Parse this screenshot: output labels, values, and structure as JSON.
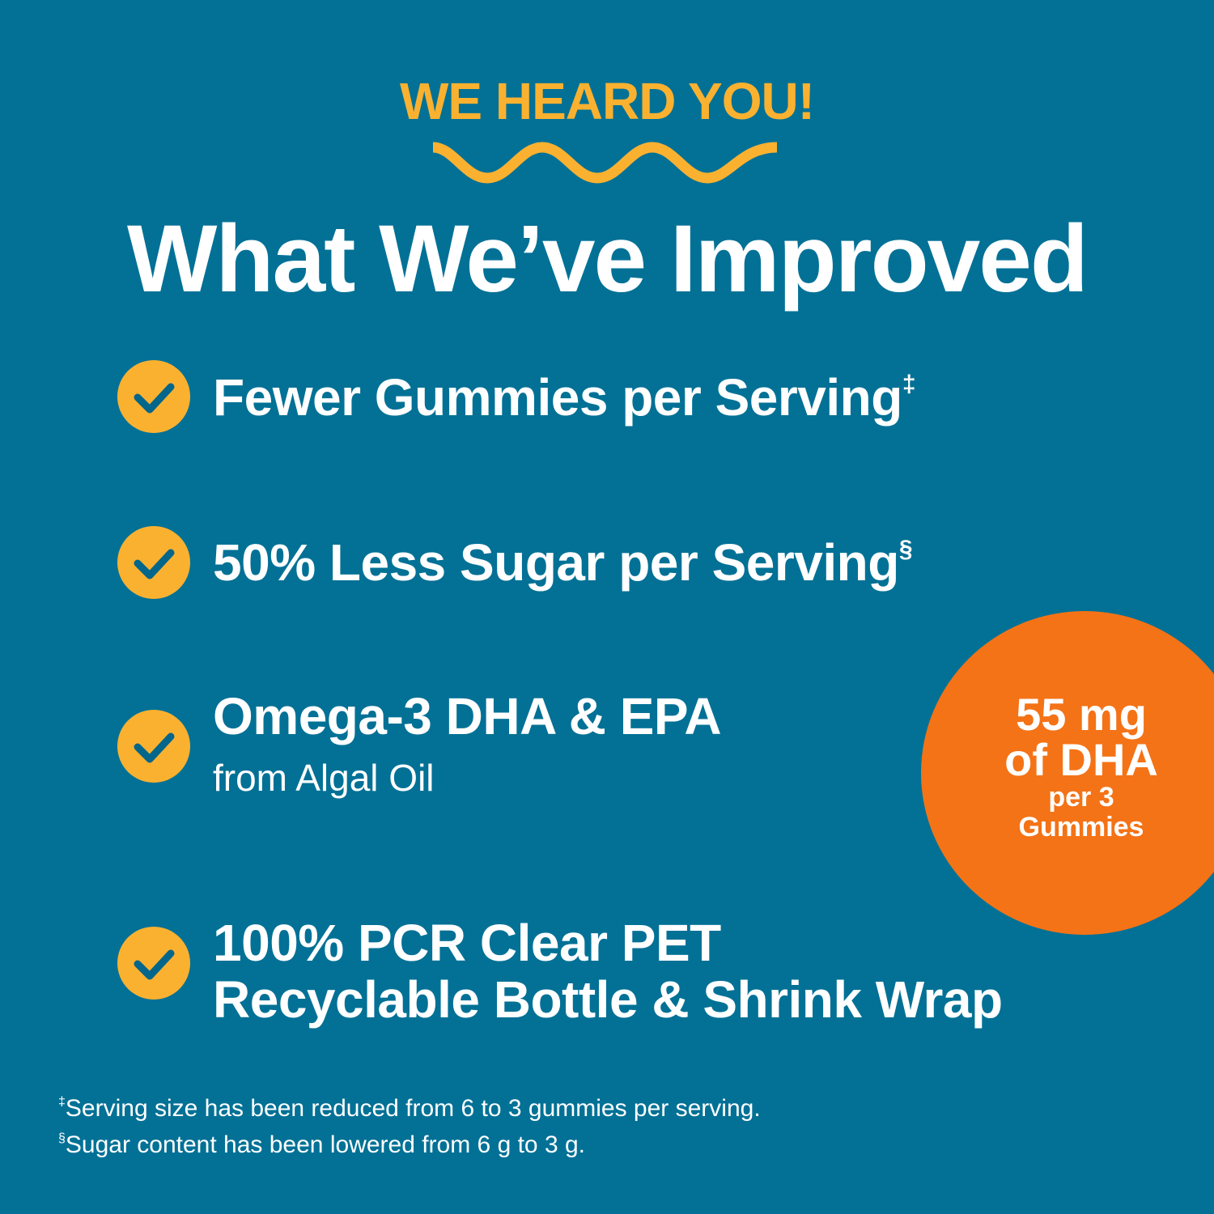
{
  "kicker": "WE HEARD YOU!",
  "title": "What We’ve Improved",
  "colors": {
    "background": "#037196",
    "accent_yellow": "#FBB130",
    "badge_orange": "#F47316",
    "text": "#FFFFFF"
  },
  "items": [
    {
      "icon": "check-circle-icon",
      "title": "Fewer Gummies per Serving",
      "mark": "‡"
    },
    {
      "icon": "check-circle-icon",
      "title": "50% Less Sugar per Serving",
      "mark": "§"
    },
    {
      "icon": "check-circle-icon",
      "title": "Omega-3 DHA & EPA",
      "subtitle": "from Algal Oil"
    },
    {
      "icon": "check-circle-icon",
      "title": "100% PCR Clear PET",
      "title2": "Recyclable Bottle & Shrink Wrap"
    }
  ],
  "badge": {
    "line1": "55 mg",
    "line2": "of DHA",
    "line3": "per 3",
    "line4": "Gummies"
  },
  "footnotes": [
    {
      "mark": "‡",
      "text": "Serving size has been reduced from 6 to 3 gummies per serving."
    },
    {
      "mark": "§",
      "text": "Sugar content has been lowered from 6 g to 3 g."
    }
  ]
}
